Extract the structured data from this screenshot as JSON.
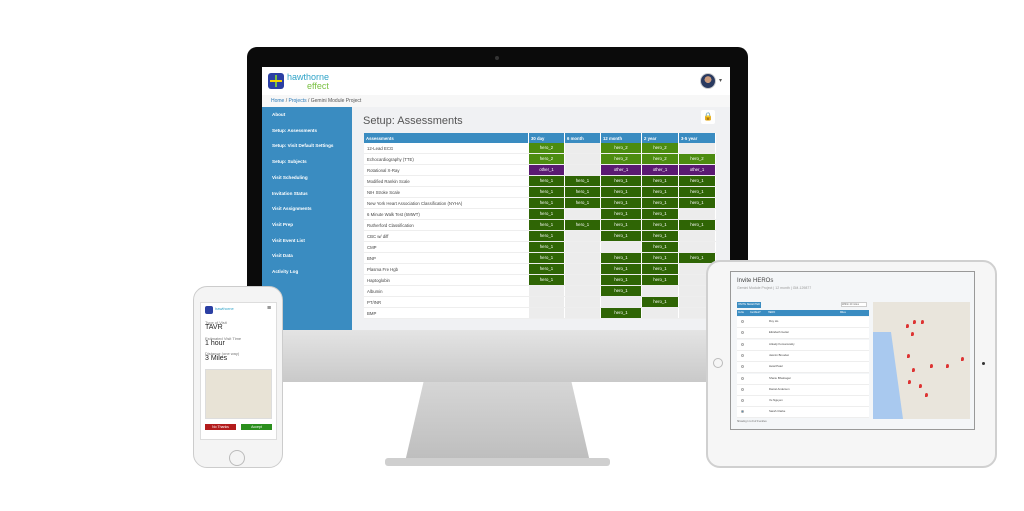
{
  "app": {
    "logo_line1": "hawthorne",
    "logo_line2": "effect"
  },
  "breadcrumb": [
    "Home",
    "Projects",
    "Gemini Module Project"
  ],
  "sidebar": [
    "About",
    "Setup: Assessments",
    "Setup: Visit Default Settings",
    "Setup: Subjects",
    "Visit Scheduling",
    "Invitation Status",
    "Visit Assignments",
    "Visit Prep",
    "Visit Event List",
    "Visit Data",
    "Activity Log"
  ],
  "page_title": "Setup: Assessments",
  "colors": {
    "hero_2": "#4c8c10",
    "hero_1": "#2f6505",
    "other_1": "#5a1a72",
    "header": "#3a8cc1"
  },
  "table": {
    "headers": [
      "Assessments",
      "30 day",
      "6 month",
      "12 month",
      "2 year",
      "3-5 year"
    ],
    "rows": [
      [
        "12-Lead ECG",
        "hero_2",
        "",
        "hero_2",
        "hero_2",
        ""
      ],
      [
        "Echocardiography (TTE)",
        "hero_2",
        "",
        "hero_2",
        "hero_2",
        "hero_2"
      ],
      [
        "Rotational X-Ray",
        "other_1",
        "",
        "other_1",
        "other_1",
        "other_1"
      ],
      [
        "Modified Rankin Scale",
        "hero_1",
        "hero_1",
        "hero_1",
        "hero_1",
        "hero_1"
      ],
      [
        "NIH Stroke Scale",
        "hero_1",
        "hero_1",
        "hero_1",
        "hero_1",
        "hero_1"
      ],
      [
        "New York Heart Association Classification (NYHA)",
        "hero_1",
        "hero_1",
        "hero_1",
        "hero_1",
        "hero_1"
      ],
      [
        "6 Minute Walk Test (6MWT)",
        "hero_1",
        "",
        "hero_1",
        "hero_1",
        ""
      ],
      [
        "Rutherford Classification",
        "hero_1",
        "hero_1",
        "hero_1",
        "hero_1",
        "hero_1"
      ],
      [
        "CBC w/ diff",
        "hero_1",
        "",
        "hero_1",
        "hero_1",
        ""
      ],
      [
        "CMP",
        "hero_1",
        "",
        "",
        "hero_1",
        ""
      ],
      [
        "BNP",
        "hero_1",
        "",
        "hero_1",
        "hero_1",
        "hero_1"
      ],
      [
        "Plasma Fre Hgb",
        "hero_1",
        "",
        "hero_1",
        "hero_1",
        ""
      ],
      [
        "Haptoglobin",
        "hero_1",
        "",
        "hero_1",
        "hero_1",
        ""
      ],
      [
        "Albumin",
        "",
        "",
        "hero_1",
        "",
        ""
      ],
      [
        "PT/INR",
        "",
        "",
        "",
        "hero_1",
        ""
      ],
      [
        "BMP",
        "",
        "",
        "hero_1",
        "",
        ""
      ]
    ]
  },
  "phone": {
    "type_label": "Type of Visit",
    "type_value": "TAVR",
    "time_label": "Estimated Visit Time",
    "time_value": "1 hour",
    "dist_label": "Distance (one way)",
    "dist_value": "3 Miles",
    "decline": "No Thanks",
    "accept": "Accept"
  },
  "tablet": {
    "title": "Invite HEROs",
    "subtitle": "Gemini Module Project | 12 month | GM-129877",
    "invite_button": "INVITE SELECTED",
    "filter": "Within 20 miles",
    "headers": [
      "Invite",
      "Certified?",
      "HERO",
      "Miles"
    ],
    "heroes": [
      "Roy Ho",
      "Elizabeth Getter",
      "Arkady Komarovskiy",
      "Jasmin Brooden",
      "Hetal Patel",
      "Shanu Bhatnagar",
      "Daniel Anderson",
      "Vu Nguyen",
      "Sarah Clarke"
    ],
    "footer": "Showing 1 to 9 of 9 entries"
  }
}
